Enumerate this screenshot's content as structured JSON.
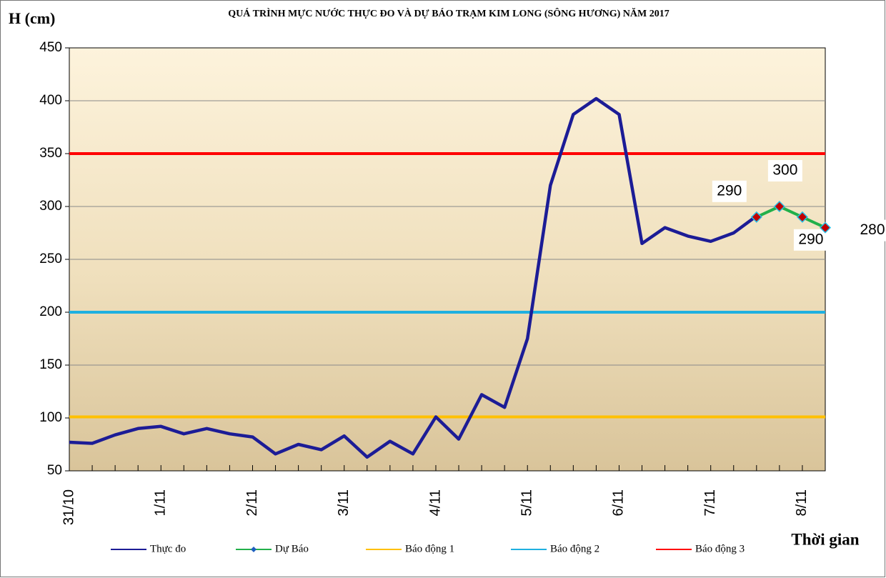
{
  "chart_data": {
    "type": "line",
    "title": "QUÁ TRÌNH MỰC NƯỚC THỰC ĐO VÀ DỰ BÁO TRẠM KIM LONG (SÔNG HƯƠNG) NĂM 2017",
    "y_label": "H (cm)",
    "x_label": "Thời gian",
    "categories": [
      "31/10",
      null,
      null,
      null,
      "1/11",
      null,
      null,
      null,
      "2/11",
      null,
      null,
      null,
      "3/11",
      null,
      null,
      null,
      "4/11",
      null,
      null,
      null,
      "5/11",
      null,
      null,
      null,
      "6/11",
      null,
      null,
      null,
      "7/11",
      null,
      null,
      null,
      "8/11",
      null
    ],
    "ylim": [
      50,
      450
    ],
    "yticks": [
      50,
      100,
      150,
      200,
      250,
      300,
      350,
      400,
      450
    ],
    "series": [
      {
        "name": "Thực đo",
        "color": "#1c1c96",
        "values": [
          77,
          76,
          84,
          90,
          92,
          85,
          90,
          85,
          82,
          66,
          75,
          70,
          83,
          63,
          78,
          66,
          101,
          80,
          122,
          110,
          175,
          320,
          387,
          402,
          387,
          265,
          280,
          272,
          267,
          275,
          291,
          null,
          null,
          null
        ]
      },
      {
        "name": "Dự Báo",
        "color": "#22b04a",
        "markers": true,
        "data_labels": true,
        "values": [
          null,
          null,
          null,
          null,
          null,
          null,
          null,
          null,
          null,
          null,
          null,
          null,
          null,
          null,
          null,
          null,
          null,
          null,
          null,
          null,
          null,
          null,
          null,
          null,
          null,
          null,
          null,
          null,
          null,
          null,
          290,
          300,
          290,
          280
        ]
      },
      {
        "name": "Báo động 1",
        "color": "#ffc000",
        "values": [
          101,
          101,
          101,
          101,
          101,
          101,
          101,
          101,
          101,
          101,
          101,
          101,
          101,
          101,
          101,
          101,
          101,
          101,
          101,
          101,
          101,
          101,
          101,
          101,
          101,
          101,
          101,
          101,
          101,
          101,
          101,
          101,
          101,
          101
        ]
      },
      {
        "name": "Báo động 2",
        "color": "#1fb0e0",
        "values": [
          200,
          200,
          200,
          200,
          200,
          200,
          200,
          200,
          200,
          200,
          200,
          200,
          200,
          200,
          200,
          200,
          200,
          200,
          200,
          200,
          200,
          200,
          200,
          200,
          200,
          200,
          200,
          200,
          200,
          200,
          200,
          200,
          200,
          200
        ]
      },
      {
        "name": "Báo động 3",
        "color": "#ff0000",
        "values": [
          350,
          350,
          350,
          350,
          350,
          350,
          350,
          350,
          350,
          350,
          350,
          350,
          350,
          350,
          350,
          350,
          350,
          350,
          350,
          350,
          350,
          350,
          350,
          350,
          350,
          350,
          350,
          350,
          350,
          350,
          350,
          350,
          350,
          350
        ]
      }
    ]
  }
}
